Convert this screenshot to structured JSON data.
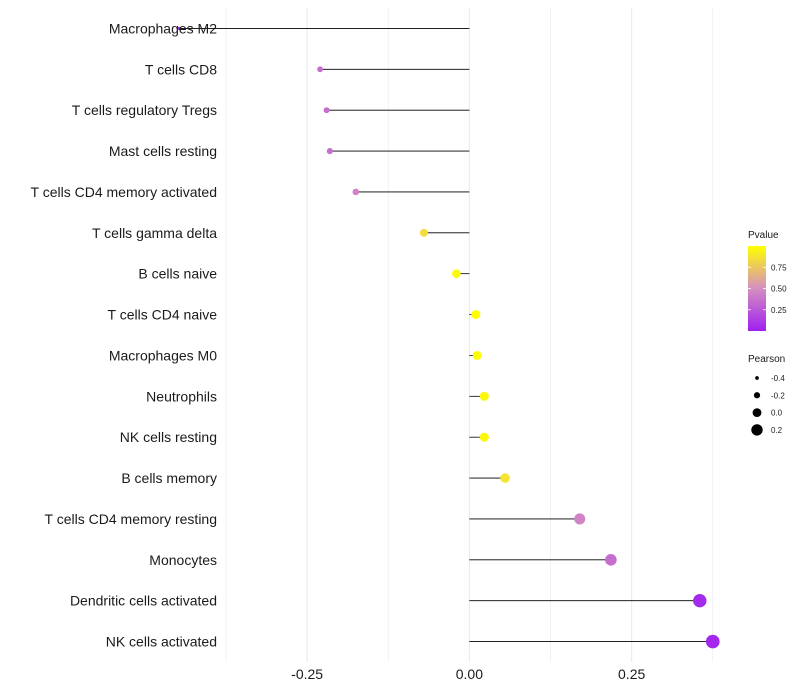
{
  "chart_data": {
    "type": "lollipop",
    "title": "",
    "xlabel": "",
    "ylabel": "",
    "xlim": [
      -0.375,
      0.4
    ],
    "x_ticks": [
      -0.25,
      0.0,
      0.25
    ],
    "x_tick_labels": [
      "-0.25",
      "0.00",
      "0.25"
    ],
    "grid": true,
    "categories": [
      "Macrophages M2",
      "T cells CD8",
      "T cells regulatory  Tregs",
      "Mast cells resting",
      "T cells CD4 memory activated",
      "T cells gamma delta",
      "B cells naive",
      "T cells CD4 naive",
      "Macrophages M0",
      "Neutrophils",
      "NK cells resting",
      "B cells memory",
      "T cells CD4 memory resting",
      "Monocytes",
      "Dendritic cells activated",
      "NK cells activated"
    ],
    "pearson": [
      -0.447,
      -0.23,
      -0.22,
      -0.215,
      -0.175,
      -0.07,
      -0.02,
      0.01,
      0.012,
      0.023,
      0.023,
      0.055,
      0.17,
      0.218,
      0.355,
      0.375
    ],
    "pvalue": [
      0.01,
      0.35,
      0.35,
      0.35,
      0.45,
      0.85,
      0.98,
      0.99,
      0.99,
      0.97,
      0.97,
      0.88,
      0.45,
      0.35,
      0.05,
      0.03
    ],
    "color_legend": {
      "title": "Pvalue",
      "ticks": [
        0.75,
        0.5,
        0.25
      ],
      "tick_labels": [
        "0.75",
        "0.50",
        "0.25"
      ],
      "low_color": "#a020f0",
      "mid_color": "#d58fc0",
      "high_color": "#ffff00"
    },
    "size_legend": {
      "title": "Pearson",
      "values": [
        -0.4,
        -0.2,
        0.0,
        0.2
      ],
      "labels": [
        "-0.4",
        "-0.2",
        "0.0",
        "0.2"
      ]
    },
    "stem_color": "#000000",
    "grid_color": "#ebebeb"
  }
}
